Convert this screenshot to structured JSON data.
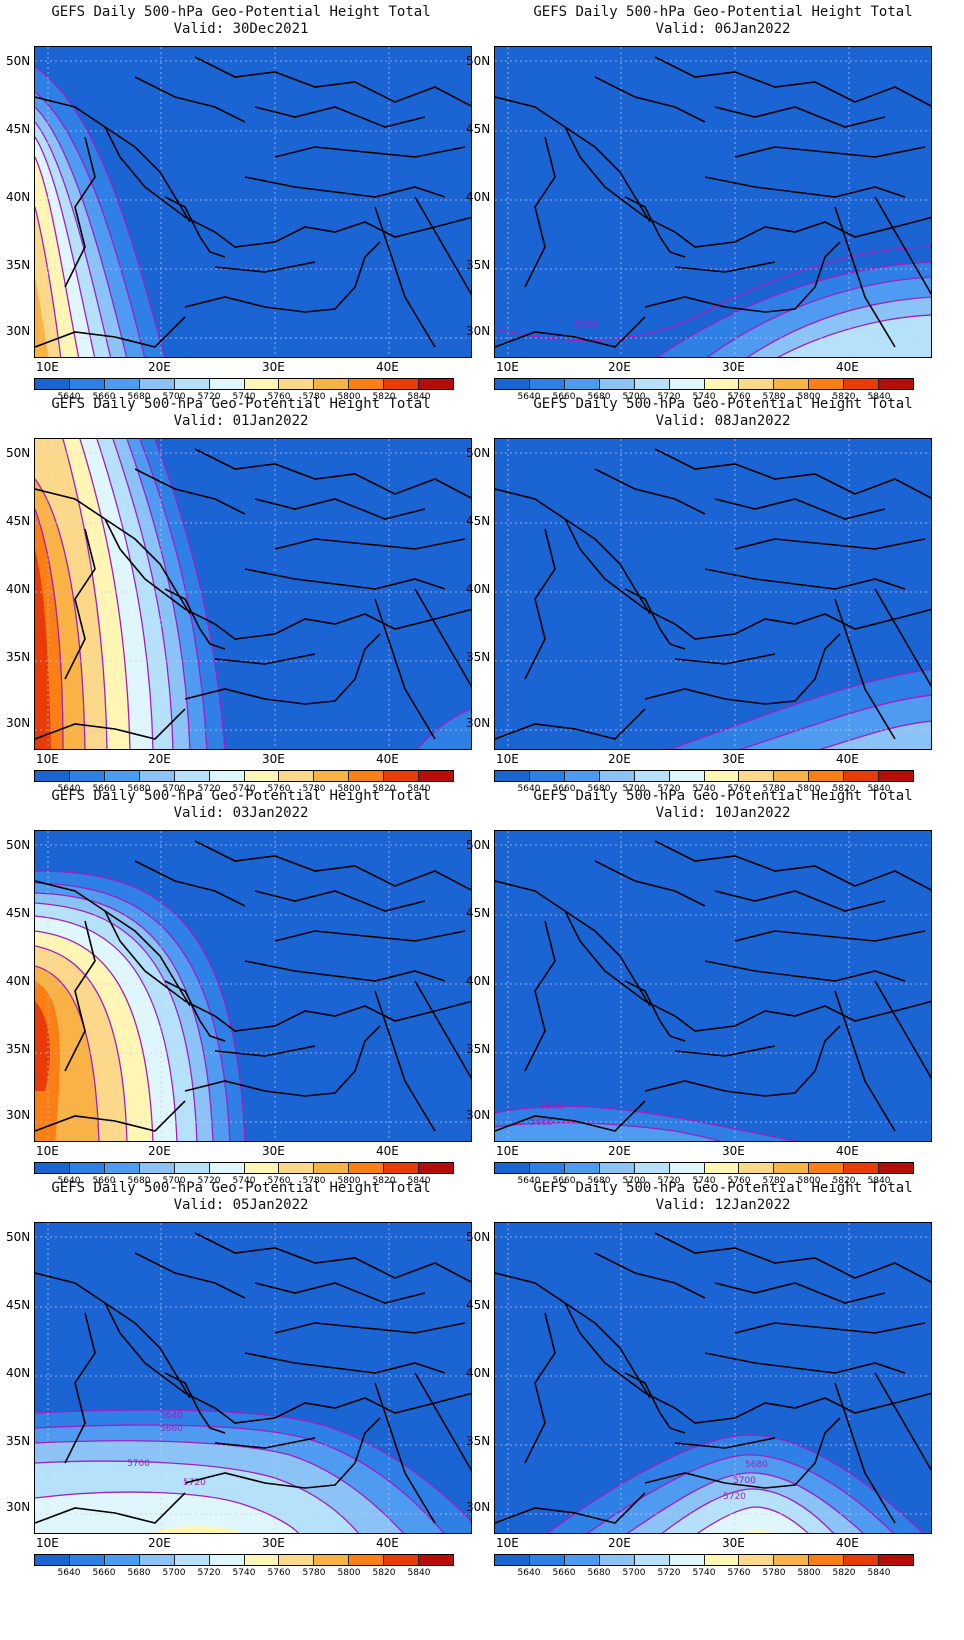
{
  "title_prefix": "GEFS Daily 500-hPa Geo-Potential Height Total",
  "lat_labels": [
    "50N",
    "45N",
    "40N",
    "35N",
    "30N"
  ],
  "lon_labels": [
    "10E",
    "20E",
    "30E",
    "40E"
  ],
  "colorbar": {
    "labels": [
      "5640",
      "5660",
      "5680",
      "5700",
      "5720",
      "5740",
      "5760",
      "5780",
      "5800",
      "5820",
      "5840"
    ],
    "colors": [
      "#1a64d4",
      "#2e7fe6",
      "#4f9bf2",
      "#8cc3f7",
      "#b6e1fb",
      "#e0f6fd",
      "#fff5b5",
      "#fbd88a",
      "#f8b246",
      "#fb7f14",
      "#e93a0a",
      "#b80c09"
    ]
  },
  "panels": [
    {
      "title": "GEFS Daily 500-hPa Geo-Potential Height Total",
      "valid": "Valid: 30Dec2021"
    },
    {
      "title": "GEFS Daily 500-hPa Geo-Potential Height Total",
      "valid": "Valid: 06Jan2022"
    },
    {
      "title": "GEFS Daily 500-hPa Geo-Potential Height Total",
      "valid": "Valid: 01Jan2022"
    },
    {
      "title": "GEFS Daily 500-hPa Geo-Potential Height Total",
      "valid": "Valid: 08Jan2022"
    },
    {
      "title": "GEFS Daily 500-hPa Geo-Potential Height Total",
      "valid": "Valid: 03Jan2022"
    },
    {
      "title": "GEFS Daily 500-hPa Geo-Potential Height Total",
      "valid": "Valid: 10Jan2022"
    },
    {
      "title": "GEFS Daily 500-hPa Geo-Potential Height Total",
      "valid": "Valid: 05Jan2022"
    },
    {
      "title": "GEFS Daily 500-hPa Geo-Potential Height Total",
      "valid": "Valid: 12Jan2022"
    }
  ],
  "contour_labels": {
    "p1": [
      "5640"
    ],
    "p5": [
      "5640",
      "5660"
    ],
    "p6": [
      "5640",
      "5660",
      "5700",
      "5720"
    ],
    "p7": [
      "5680",
      "5700",
      "5720"
    ]
  }
}
